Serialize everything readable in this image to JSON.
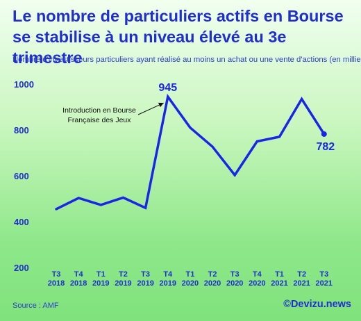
{
  "header": {
    "title_line1": "Le nombre de particuliers actifs en Bourse",
    "title_line2": "se stabilise à un niveau élevé au 3e trimestre",
    "subtitle": "Nombre d'investisseurs particuliers ayant réalisé au moins un achat ou une vente d'actions (en milliers)"
  },
  "footer": {
    "source": "Source : AMF",
    "brand": "©Devizu.news"
  },
  "colors": {
    "line": "#1a26e6",
    "text": "#1f2fcf",
    "annotation": "#111111"
  },
  "chart_data": {
    "type": "line",
    "title": "",
    "xlabel": "",
    "ylabel": "",
    "ylim": [
      200,
      1000
    ],
    "yticks": [
      200,
      400,
      600,
      800,
      1000
    ],
    "grid": false,
    "categories": [
      {
        "q": "T3",
        "y": "2018"
      },
      {
        "q": "T4",
        "y": "2018"
      },
      {
        "q": "T1",
        "y": "2019"
      },
      {
        "q": "T2",
        "y": "2019"
      },
      {
        "q": "T3",
        "y": "2019"
      },
      {
        "q": "T4",
        "y": "2019"
      },
      {
        "q": "T1",
        "y": "2020"
      },
      {
        "q": "T2",
        "y": "2020"
      },
      {
        "q": "T3",
        "y": "2020"
      },
      {
        "q": "T4",
        "y": "2020"
      },
      {
        "q": "T1",
        "y": "2021"
      },
      {
        "q": "T2",
        "y": "2021"
      },
      {
        "q": "T3",
        "y": "2021"
      }
    ],
    "series": [
      {
        "values": [
          455,
          503,
          473,
          505,
          460,
          945,
          810,
          727,
          603,
          750,
          770,
          935,
          782
        ]
      }
    ],
    "data_labels": [
      {
        "index": 5,
        "text": "945"
      },
      {
        "index": 12,
        "text": "782"
      }
    ],
    "annotation": {
      "index": 5,
      "lines": [
        "Introduction en Bourse",
        "Française des Jeux"
      ]
    }
  }
}
